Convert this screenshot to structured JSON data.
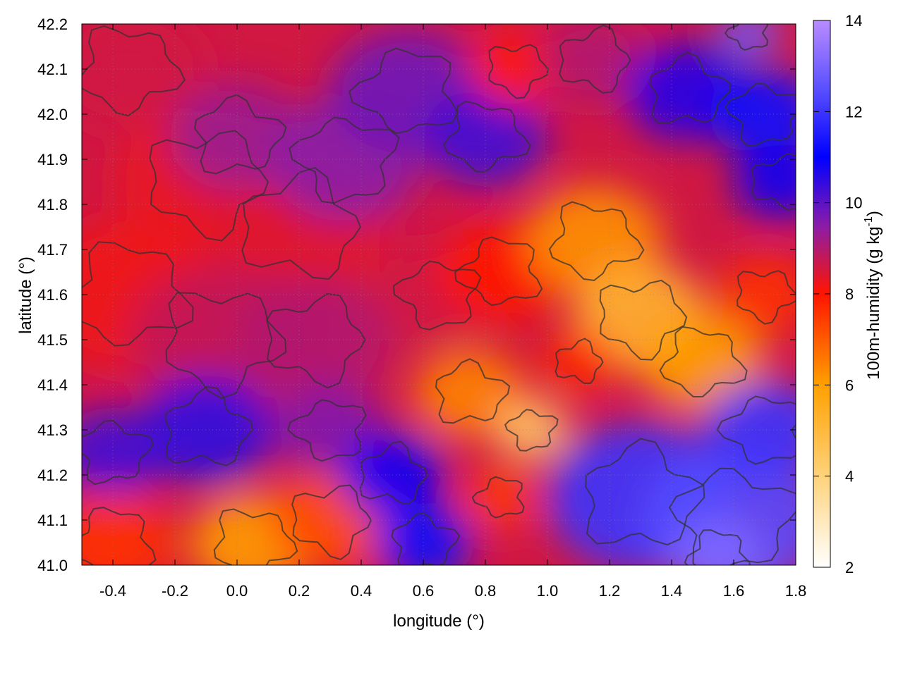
{
  "chart_data": {
    "type": "heatmap",
    "xlabel": "longitude (°)",
    "ylabel": "latitude (°)",
    "colorbar_label": "100m-humidity (g kg",
    "colorbar_label_sup": "-1",
    "colorbar_label_end": ")",
    "xlim": [
      -0.5,
      1.8
    ],
    "ylim": [
      41.0,
      42.2
    ],
    "x_ticks": [
      -0.4,
      -0.2,
      0.0,
      0.2,
      0.4,
      0.6,
      0.8,
      1.0,
      1.2,
      1.4,
      1.6,
      1.8
    ],
    "x_tick_labels": [
      "-0.4",
      "-0.2",
      "0.0",
      "0.2",
      "0.4",
      "0.6",
      "0.8",
      "1.0",
      "1.2",
      "1.4",
      "1.6",
      "1.8"
    ],
    "y_ticks": [
      41.0,
      41.1,
      41.2,
      41.3,
      41.4,
      41.5,
      41.6,
      41.7,
      41.8,
      41.9,
      42.0,
      42.1,
      42.2
    ],
    "y_tick_labels": [
      "41.0",
      "41.1",
      "41.2",
      "41.3",
      "41.4",
      "41.5",
      "41.6",
      "41.7",
      "41.8",
      "41.9",
      "42.0",
      "42.1",
      "42.2"
    ],
    "colorbar_range": [
      2,
      14
    ],
    "colorbar_ticks": [
      2,
      4,
      6,
      8,
      10,
      12,
      14
    ],
    "colorbar_tick_labels": [
      "2",
      "4",
      "6",
      "8",
      "10",
      "12",
      "14"
    ],
    "colormap": [
      {
        "v": 2,
        "color": "#ffffff"
      },
      {
        "v": 4,
        "color": "#ffd27a"
      },
      {
        "v": 6,
        "color": "#ffa000"
      },
      {
        "v": 8,
        "color": "#ff1500"
      },
      {
        "v": 9.5,
        "color": "#8a1ca8"
      },
      {
        "v": 11,
        "color": "#0000ff"
      },
      {
        "v": 12.5,
        "color": "#5a50ff"
      },
      {
        "v": 14,
        "color": "#b98cff"
      }
    ],
    "grid": true,
    "grid_style": "dotted",
    "contour_color": "#333333",
    "humidity_regions": [
      {
        "lon": -0.35,
        "lat": 42.1,
        "v": 8.6,
        "r": 0.25
      },
      {
        "lon": -0.1,
        "lat": 41.85,
        "v": 8.3,
        "r": 0.3
      },
      {
        "lon": 0.2,
        "lat": 41.75,
        "v": 8.4,
        "r": 0.3
      },
      {
        "lon": 0.0,
        "lat": 41.95,
        "v": 9.3,
        "r": 0.22
      },
      {
        "lon": 0.35,
        "lat": 41.9,
        "v": 9.5,
        "r": 0.25
      },
      {
        "lon": 0.55,
        "lat": 42.05,
        "v": 9.8,
        "r": 0.25
      },
      {
        "lon": 0.8,
        "lat": 41.95,
        "v": 10.3,
        "r": 0.2
      },
      {
        "lon": 0.9,
        "lat": 42.1,
        "v": 8.0,
        "r": 0.15
      },
      {
        "lon": 1.15,
        "lat": 42.12,
        "v": 9.0,
        "r": 0.18
      },
      {
        "lon": 1.45,
        "lat": 42.05,
        "v": 10.6,
        "r": 0.2
      },
      {
        "lon": 1.7,
        "lat": 42.0,
        "v": 11.2,
        "r": 0.18
      },
      {
        "lon": 1.65,
        "lat": 42.18,
        "v": 12.8,
        "r": 0.1
      },
      {
        "lon": -0.35,
        "lat": 41.6,
        "v": 8.2,
        "r": 0.3
      },
      {
        "lon": -0.05,
        "lat": 41.5,
        "v": 8.8,
        "r": 0.3
      },
      {
        "lon": 0.25,
        "lat": 41.5,
        "v": 9.0,
        "r": 0.25
      },
      {
        "lon": -0.1,
        "lat": 41.3,
        "v": 10.5,
        "r": 0.22
      },
      {
        "lon": -0.4,
        "lat": 41.25,
        "v": 10.3,
        "r": 0.18
      },
      {
        "lon": 0.3,
        "lat": 41.3,
        "v": 9.6,
        "r": 0.18
      },
      {
        "lon": -0.4,
        "lat": 41.05,
        "v": 7.6,
        "r": 0.2
      },
      {
        "lon": 0.05,
        "lat": 41.05,
        "v": 6.0,
        "r": 0.2
      },
      {
        "lon": 0.3,
        "lat": 41.1,
        "v": 7.2,
        "r": 0.2
      },
      {
        "lon": 0.5,
        "lat": 41.2,
        "v": 10.9,
        "r": 0.17
      },
      {
        "lon": 0.6,
        "lat": 41.05,
        "v": 11.2,
        "r": 0.16
      },
      {
        "lon": 0.65,
        "lat": 41.6,
        "v": 8.6,
        "r": 0.2
      },
      {
        "lon": 0.85,
        "lat": 41.65,
        "v": 8.0,
        "r": 0.2
      },
      {
        "lon": 1.15,
        "lat": 41.72,
        "v": 6.2,
        "r": 0.22
      },
      {
        "lon": 1.3,
        "lat": 41.55,
        "v": 5.2,
        "r": 0.22
      },
      {
        "lon": 1.1,
        "lat": 41.45,
        "v": 7.8,
        "r": 0.12
      },
      {
        "lon": 0.75,
        "lat": 41.38,
        "v": 6.4,
        "r": 0.18
      },
      {
        "lon": 0.95,
        "lat": 41.3,
        "v": 4.3,
        "r": 0.12
      },
      {
        "lon": 0.85,
        "lat": 41.15,
        "v": 7.5,
        "r": 0.12
      },
      {
        "lon": 1.5,
        "lat": 41.45,
        "v": 6.0,
        "r": 0.2
      },
      {
        "lon": 1.7,
        "lat": 41.6,
        "v": 7.6,
        "r": 0.15
      },
      {
        "lon": 1.75,
        "lat": 41.85,
        "v": 10.8,
        "r": 0.15
      },
      {
        "lon": 1.3,
        "lat": 41.15,
        "v": 12.0,
        "r": 0.3
      },
      {
        "lon": 1.6,
        "lat": 41.1,
        "v": 12.4,
        "r": 0.3
      },
      {
        "lon": 1.7,
        "lat": 41.3,
        "v": 12.0,
        "r": 0.2
      },
      {
        "lon": 1.55,
        "lat": 41.02,
        "v": 13.1,
        "r": 0.15
      }
    ]
  }
}
